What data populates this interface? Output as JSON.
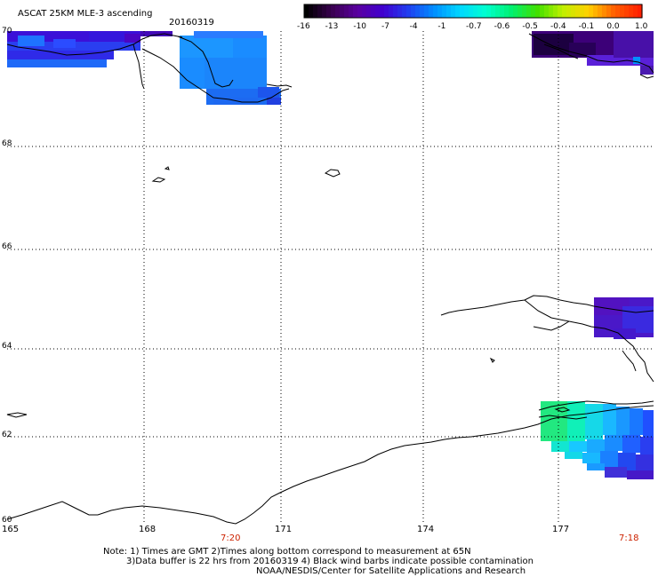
{
  "header": {
    "title": "ASCAT 25KM MLE-3 ascending",
    "date": "20160319"
  },
  "colorbar": {
    "tick_labels": [
      "-16",
      "-13",
      "-10",
      "-7",
      "-4",
      "-1",
      "-0.7",
      "-0.6",
      "-0.5",
      "-0.4",
      "-0.1",
      "0.0",
      "1.0"
    ],
    "colors": [
      "#000000",
      "#3a0050",
      "#5a00a0",
      "#4000d0",
      "#2040f0",
      "#0090ff",
      "#00d8ff",
      "#00ffd0",
      "#00f070",
      "#40e000",
      "#c0f000",
      "#ffd000",
      "#ff6000",
      "#ff2000"
    ]
  },
  "axes": {
    "lat_labels": [
      "70",
      "68",
      "66",
      "64",
      "62",
      "60"
    ],
    "lon_labels": [
      "165",
      "168",
      "171",
      "174",
      "177"
    ],
    "time_labels": [
      "7:20",
      "7:18"
    ]
  },
  "colors": {
    "coastline": "#000000",
    "grid": "#000000",
    "time_label": "#cc2200"
  },
  "note": {
    "line1": "Note: 1) Times are GMT 2)Times along bottom correspond to measurement at 65N",
    "line2": "3)Data buffer is 22 hrs from 20160319 4) Black wind barbs indicate possible contamination",
    "line3": "NOAA/NESDIS/Center for Satellite Applications and Research"
  }
}
